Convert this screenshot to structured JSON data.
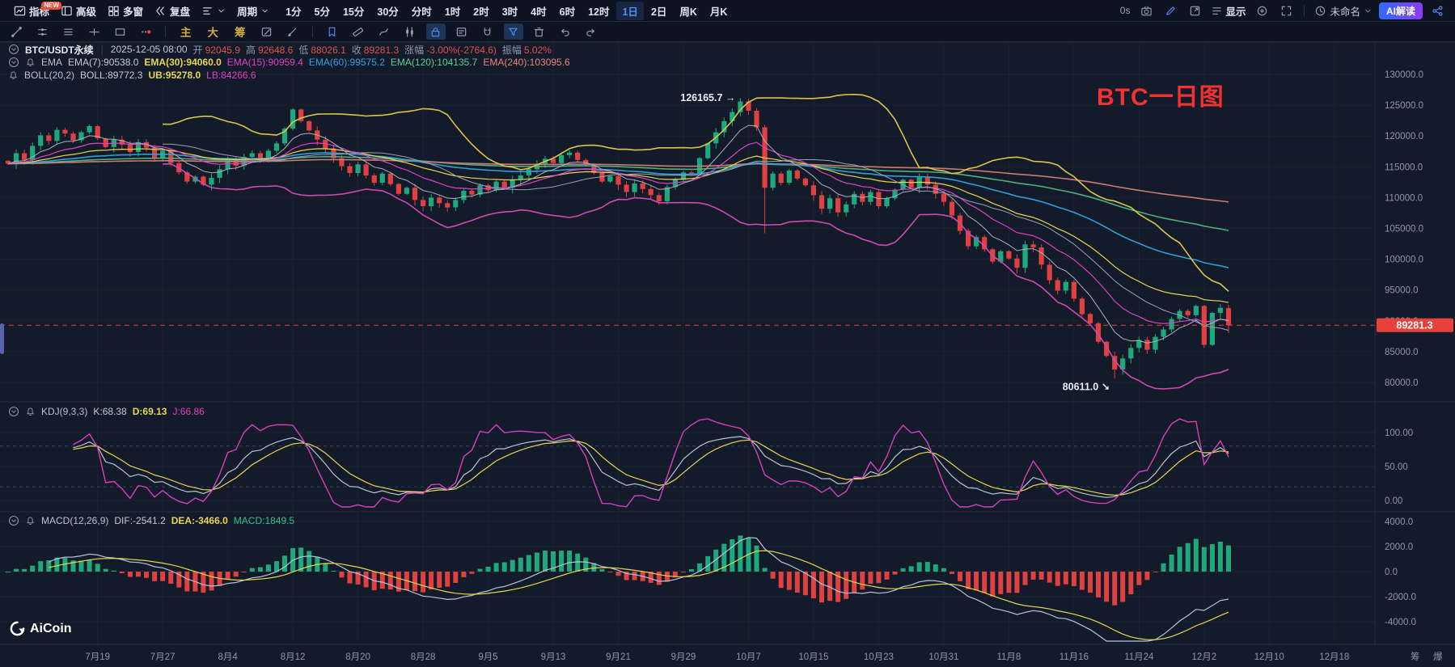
{
  "toolbar_top": {
    "left_items": [
      {
        "icon": "indicator-chart-icon",
        "label": "指标",
        "badge": "NEW",
        "name": "indicators-button"
      },
      {
        "icon": "advanced-window-icon",
        "label": "高级",
        "name": "advanced-button"
      },
      {
        "icon": "multi-window-icon",
        "label": "多窗",
        "name": "multi-window-button"
      },
      {
        "icon": "replay-icon",
        "label": "复盘",
        "name": "replay-button"
      },
      {
        "icon": "volume-profile-icon",
        "label": "",
        "chevron": true,
        "name": "volume-profile-button"
      }
    ],
    "period_label": "周期",
    "timeframes": [
      "1分",
      "5分",
      "15分",
      "30分",
      "分时",
      "1时",
      "2时",
      "3时",
      "4时",
      "6时",
      "12时",
      "1日",
      "2日",
      "周K",
      "月K"
    ],
    "active_timeframe": "1日",
    "right": {
      "countdown": "0s",
      "icons1": [
        "camera-icon",
        "draw-pencil-icon",
        "float-window-icon"
      ],
      "display_label": "显示",
      "icons2": [
        "target-icon",
        "fullscreen-icon"
      ],
      "layout_name": "未命名",
      "ai_label": "AI解读",
      "share_icon": "share-icon"
    }
  },
  "toolbar_draw": {
    "icons": [
      {
        "name": "trend-line-icon"
      },
      {
        "name": "parallel-lines-icon"
      },
      {
        "name": "horizontal-lines-icon"
      },
      {
        "name": "cross-line-icon"
      },
      {
        "name": "rectangle-icon"
      },
      {
        "name": "more-dots-icon"
      },
      {
        "divider": true
      },
      {
        "text": "主",
        "name": "main-chart-tab"
      },
      {
        "text": "大",
        "name": "large-chart-tab"
      },
      {
        "text": "筹",
        "name": "chip-chart-tab"
      },
      {
        "name": "edit-square-icon"
      },
      {
        "name": "brush-icon"
      },
      {
        "divider": true
      },
      {
        "name": "bookmark-icon",
        "accent": true
      },
      {
        "name": "ruler-icon"
      },
      {
        "name": "pen-curve-icon"
      },
      {
        "name": "candle-pattern-icon"
      },
      {
        "name": "lock-icon",
        "active": true
      },
      {
        "name": "note-icon"
      },
      {
        "name": "magnet-icon"
      },
      {
        "name": "funnel-icon",
        "active": true
      },
      {
        "name": "trash-icon"
      },
      {
        "name": "undo-icon"
      },
      {
        "name": "redo-icon"
      }
    ]
  },
  "symbol_row": {
    "symbol": "BTC/USDT永续",
    "datetime": "2025-12-05 08:00",
    "fields": [
      {
        "label": "开",
        "value": "92045.9"
      },
      {
        "label": "高",
        "value": "92648.6"
      },
      {
        "label": "低",
        "value": "88026.1"
      },
      {
        "label": "收",
        "value": "89281.3"
      },
      {
        "label": "涨幅",
        "value": "-3.00%(-2764.6)"
      },
      {
        "label": "振幅",
        "value": "5.02%"
      }
    ]
  },
  "legends": {
    "ema": {
      "name": "EMA",
      "items": [
        {
          "label": "EMA(7):",
          "value": "90538.0",
          "color": "#c3c9d6"
        },
        {
          "label": "EMA(30):",
          "value": "94060.0",
          "color": "#e9d64f",
          "bold": true
        },
        {
          "label": "EMA(15):",
          "value": "90959.4",
          "color": "#e141c3"
        },
        {
          "label": "EMA(60):",
          "value": "99575.2",
          "color": "#35a2e0"
        },
        {
          "label": "EMA(120):",
          "value": "104135.7",
          "color": "#5bd08a"
        },
        {
          "label": "EMA(240):",
          "value": "103095.6",
          "color": "#e8857b"
        }
      ]
    },
    "boll": {
      "name": "BOLL(20,2)",
      "items": [
        {
          "label": "BOLL:",
          "value": "89772.3",
          "color": "#c3c9d6"
        },
        {
          "label": "UB:",
          "value": "95278.0",
          "color": "#e9d64f",
          "bold": true
        },
        {
          "label": "LB:",
          "value": "84266.6",
          "color": "#e141c3"
        }
      ]
    },
    "kdj": {
      "name": "KDJ(9,3,3)",
      "items": [
        {
          "label": "K:",
          "value": "68.38",
          "color": "#c3c9d6"
        },
        {
          "label": "D:",
          "value": "69.13",
          "color": "#e9d64f",
          "bold": true
        },
        {
          "label": "J:",
          "value": "66.86",
          "color": "#e141c3"
        }
      ]
    },
    "macd": {
      "name": "MACD(12,26,9)",
      "items": [
        {
          "label": "DIF:",
          "value": "-2541.2",
          "color": "#c3c9d6"
        },
        {
          "label": "DEA:",
          "value": "-3466.0",
          "color": "#e9d64f",
          "bold": true
        },
        {
          "label": "MACD:",
          "value": "1849.5",
          "color": "#35c08f"
        }
      ]
    }
  },
  "annotations": {
    "high_label": "126165.7 →",
    "low_label": "80611.0 ↘",
    "watermark": "BTC一日图",
    "price_tag": "89281.3"
  },
  "logo": {
    "text": "AiCoin"
  },
  "bottom_right_labels": [
    "筹",
    "爆"
  ],
  "chart_data": {
    "type": "candlestick",
    "title": "BTC/USDT永续 1日",
    "price_ticks": [
      130000,
      125000,
      120000,
      115000,
      110000,
      105000,
      100000,
      95000,
      90000,
      85000,
      80000
    ],
    "kdj_ticks": [
      100,
      50,
      0
    ],
    "kdj_dashed": [
      80,
      20
    ],
    "macd_ticks": [
      4000,
      2000,
      0,
      -2000,
      -4000
    ],
    "dates": [
      "7月19",
      "7月27",
      "8月4",
      "8月12",
      "8月20",
      "8月28",
      "9月5",
      "9月13",
      "9月21",
      "9月29",
      "10月7",
      "10月15",
      "10月23",
      "10月31",
      "11月8",
      "11月16",
      "11月24",
      "12月2",
      "12月10",
      "12月18"
    ],
    "closes": [
      115500,
      117200,
      116100,
      118400,
      120100,
      119200,
      121000,
      120400,
      119300,
      120600,
      121600,
      119600,
      118200,
      119400,
      118600,
      117400,
      119000,
      118100,
      116400,
      117600,
      115600,
      114100,
      112600,
      113400,
      112100,
      113200,
      114600,
      116100,
      115200,
      116600,
      117200,
      116200,
      117600,
      118800,
      121200,
      124300,
      122400,
      120900,
      119400,
      118000,
      116400,
      115100,
      114000,
      115400,
      113600,
      112400,
      113900,
      112200,
      110600,
      111600,
      109600,
      108600,
      110000,
      109100,
      108400,
      109600,
      111100,
      110500,
      112000,
      111200,
      112600,
      111600,
      112900,
      113600,
      114600,
      115500,
      116300,
      115600,
      116900,
      117300,
      116100,
      115400,
      114000,
      112600,
      113500,
      112100,
      110900,
      112300,
      111400,
      110400,
      109400,
      111700,
      112900,
      114100,
      113900,
      116400,
      118800,
      120600,
      122400,
      123900,
      125600,
      124100,
      121400,
      111600,
      113900,
      112400,
      114400,
      113100,
      112000,
      110400,
      108200,
      109900,
      107600,
      108900,
      110600,
      109300,
      110900,
      108600,
      109900,
      111300,
      112900,
      111600,
      113300,
      112100,
      110600,
      109300,
      107100,
      104600,
      102100,
      103600,
      101600,
      99600,
      101300,
      100100,
      98600,
      102400,
      101900,
      99100,
      96600,
      94900,
      96300,
      93600,
      91100,
      89600,
      86600,
      84300,
      82100,
      83900,
      85600,
      86900,
      85300,
      87400,
      88600,
      90300,
      91600,
      90900,
      92400,
      86100,
      91300,
      92100,
      89281
    ],
    "last_candle": [
      92045.9,
      92648.6,
      88026.1,
      89281.3
    ],
    "overrides": {
      "90": {
        "h": 126165.7
      },
      "93": {
        "l": 104200
      },
      "136": {
        "l": 80611.0
      },
      "147": {
        "l": 85600
      }
    },
    "current_price": 89281.3,
    "high_point": 126165.7,
    "low_point": 80611.0,
    "colors": {
      "up": "#1ea97c",
      "down": "#df4040",
      "grid": "#1b2231",
      "axis_text": "#8d97ad",
      "separator": "#252c3d",
      "ema7": "#aab1c2",
      "ema15": "#e141c3",
      "ema30": "#e9d64f",
      "ema60": "#2e9fd6",
      "ema120": "#4fae7f",
      "ema240": "#c97b74",
      "boll_ub": "#d8c64b",
      "boll_lb": "#cf49b5",
      "boll_mid": "#9aa1b4",
      "k_line": "#b9c2d4",
      "d_line": "#e9d64f",
      "j_line": "#d83fc0",
      "dif_line": "#b9c2d4",
      "dea_line": "#e9d64f",
      "price_line": "#e8403a",
      "annotation": "#e9edf5"
    }
  }
}
